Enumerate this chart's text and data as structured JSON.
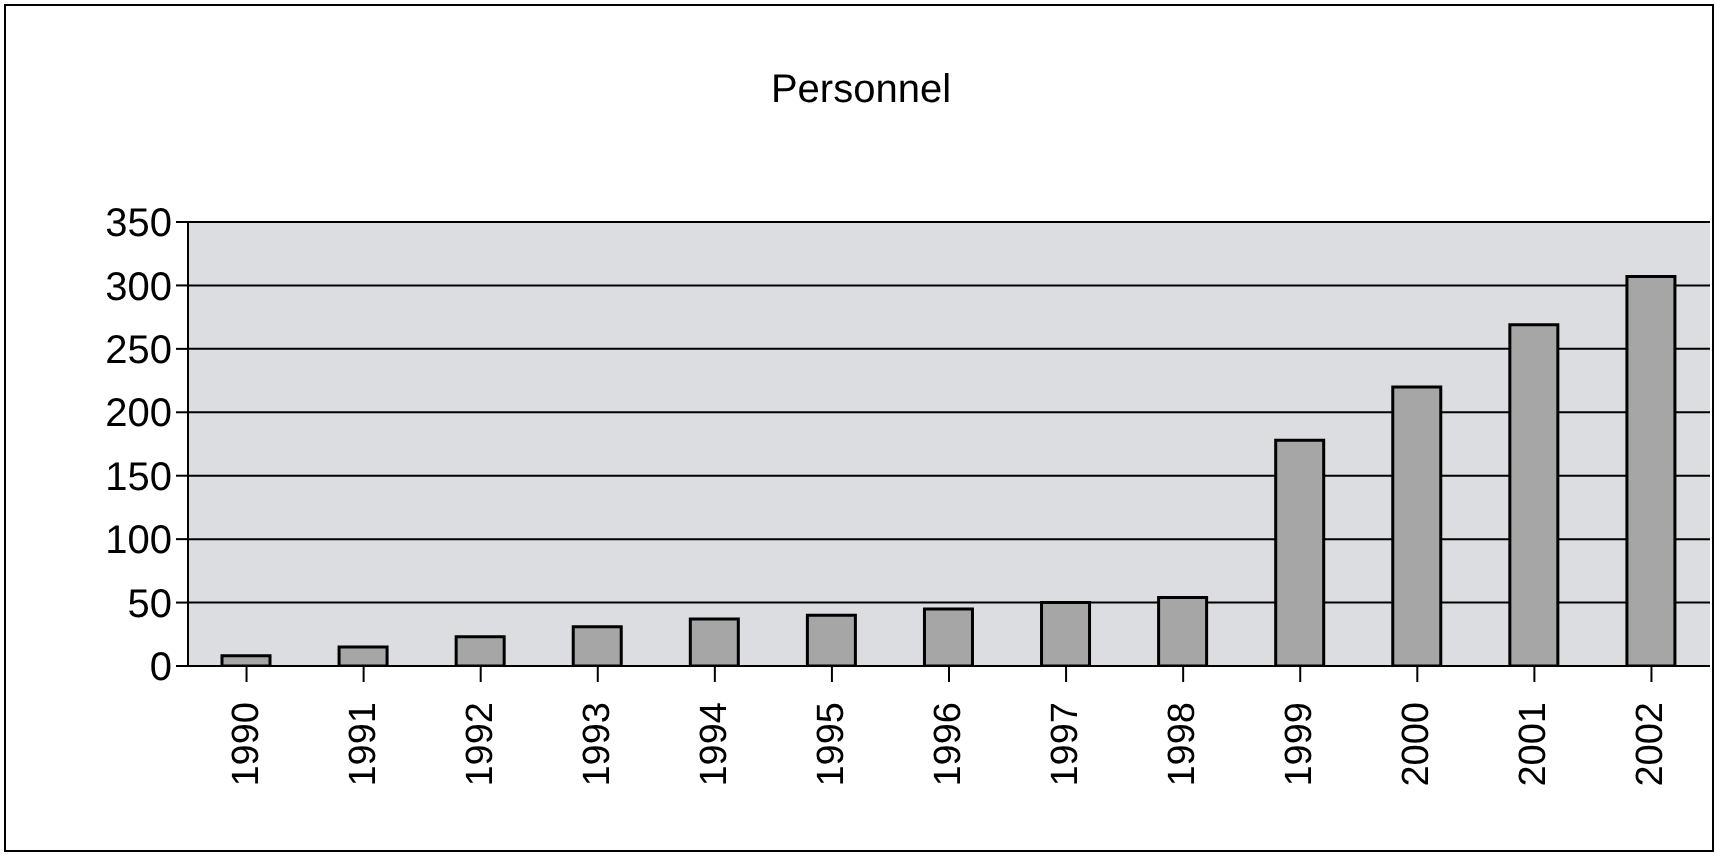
{
  "chart_data": {
    "type": "bar",
    "title": "Personnel",
    "categories": [
      "1990",
      "1991",
      "1992",
      "1993",
      "1994",
      "1995",
      "1996",
      "1997",
      "1998",
      "1999",
      "2000",
      "2001",
      "2002"
    ],
    "values": [
      8,
      15,
      23,
      31,
      37,
      40,
      45,
      50,
      54,
      178,
      220,
      269,
      307
    ],
    "color": "#a6a6a6",
    "ylim": [
      0,
      350
    ],
    "yticks": [
      0,
      50,
      100,
      150,
      200,
      250,
      300,
      350
    ],
    "grid": "y",
    "legend": false
  }
}
